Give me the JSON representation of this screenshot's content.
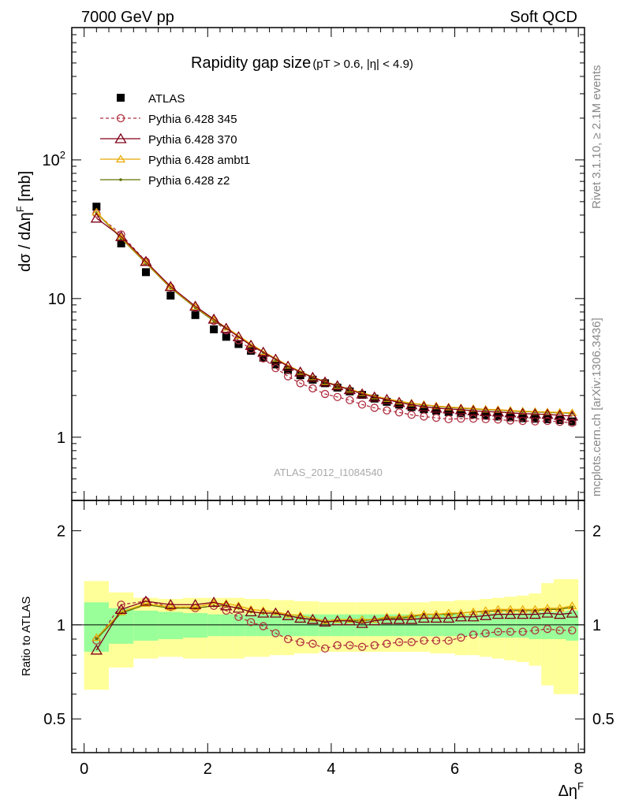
{
  "header": {
    "left": "7000 GeV pp",
    "right": "Soft QCD"
  },
  "side": {
    "rivet": "Rivet 3.1.10, ≥ 2.1M events",
    "mcplots": "mcplots.cern.ch [arXiv:1306.3436]"
  },
  "title": {
    "main": "Rapidity gap size",
    "sub": "(pT > 0.6, |η| < 4.9)"
  },
  "analysis_id": "ATLAS_2012_I1084540",
  "colors": {
    "atlas": "#000000",
    "p345": "#b03040",
    "p370": "#800018",
    "ambt1": "#e8a800",
    "z2": "#607000",
    "band_inner": "#99ff99",
    "band_outer": "#ffff99"
  },
  "chart_data": [
    {
      "type": "scatter",
      "title": "Rapidity gap size",
      "subtitle": "(pT > 0.6, |η| < 4.9)",
      "ylabel": "dσ / dΔηF [mb]",
      "ylabel_parts": {
        "main": "dσ / dΔη",
        "sup": "F",
        "unit": " [mb]"
      },
      "yscale": "log",
      "ylim": [
        0.35,
        900
      ],
      "xlim": [
        -0.2,
        8.1
      ],
      "y_ticks": [
        {
          "value": 1,
          "label": "1"
        },
        {
          "value": 10,
          "label": "10"
        },
        {
          "value": 100,
          "label": "10",
          "sup": "2"
        }
      ],
      "legend_position": "top-left",
      "x": [
        0.2,
        0.6,
        1.0,
        1.4,
        1.8,
        2.1,
        2.3,
        2.5,
        2.7,
        2.9,
        3.1,
        3.3,
        3.5,
        3.7,
        3.9,
        4.1,
        4.3,
        4.5,
        4.7,
        4.9,
        5.1,
        5.3,
        5.5,
        5.7,
        5.9,
        6.1,
        6.3,
        6.5,
        6.7,
        6.9,
        7.1,
        7.3,
        7.5,
        7.7,
        7.9
      ],
      "series": [
        {
          "name": "ATLAS",
          "marker": "square",
          "values": [
            46,
            25,
            15.5,
            10.5,
            7.6,
            6.0,
            5.3,
            4.7,
            4.2,
            3.75,
            3.35,
            3.05,
            2.8,
            2.6,
            2.45,
            2.28,
            2.14,
            2.02,
            1.9,
            1.8,
            1.72,
            1.65,
            1.59,
            1.55,
            1.52,
            1.49,
            1.46,
            1.43,
            1.41,
            1.39,
            1.37,
            1.36,
            1.35,
            1.33,
            1.3
          ]
        },
        {
          "name": "Pythia 6.428 345",
          "marker": "open-circle",
          "dashed": true,
          "values": [
            41,
            29,
            18.5,
            12.0,
            8.6,
            6.9,
            5.9,
            5.0,
            4.3,
            3.7,
            3.15,
            2.75,
            2.45,
            2.25,
            2.05,
            1.95,
            1.85,
            1.72,
            1.63,
            1.56,
            1.51,
            1.45,
            1.41,
            1.38,
            1.35,
            1.36,
            1.36,
            1.35,
            1.34,
            1.32,
            1.31,
            1.3,
            1.31,
            1.29,
            1.27
          ]
        },
        {
          "name": "Pythia 6.428 370",
          "marker": "open-triangle",
          "values": [
            38,
            28,
            18.5,
            12.2,
            8.8,
            7.1,
            6.1,
            5.3,
            4.6,
            4.1,
            3.65,
            3.25,
            2.95,
            2.7,
            2.5,
            2.35,
            2.2,
            2.05,
            1.95,
            1.87,
            1.78,
            1.71,
            1.66,
            1.62,
            1.6,
            1.58,
            1.55,
            1.53,
            1.52,
            1.5,
            1.48,
            1.47,
            1.46,
            1.44,
            1.42
          ]
        },
        {
          "name": "Pythia 6.428 ambt1",
          "marker": "open-triangle-small",
          "values": [
            42,
            27.5,
            18.2,
            12.0,
            8.7,
            7.0,
            6.2,
            5.4,
            4.7,
            4.15,
            3.7,
            3.3,
            2.98,
            2.72,
            2.52,
            2.36,
            2.22,
            2.09,
            1.98,
            1.9,
            1.82,
            1.76,
            1.72,
            1.68,
            1.65,
            1.63,
            1.61,
            1.59,
            1.58,
            1.56,
            1.54,
            1.53,
            1.52,
            1.51,
            1.5
          ]
        },
        {
          "name": "Pythia 6.428 z2",
          "marker": "dot",
          "values": [
            41.5,
            27.2,
            18.0,
            11.9,
            8.6,
            6.9,
            6.1,
            5.3,
            4.6,
            4.1,
            3.65,
            3.25,
            2.95,
            2.7,
            2.5,
            2.34,
            2.2,
            2.08,
            1.97,
            1.89,
            1.81,
            1.75,
            1.71,
            1.67,
            1.64,
            1.62,
            1.6,
            1.58,
            1.57,
            1.55,
            1.53,
            1.52,
            1.51,
            1.5,
            1.49
          ]
        }
      ]
    },
    {
      "type": "scatter",
      "ylabel": "Ratio to ATLAS",
      "xlabel": "ΔηF",
      "xlabel_parts": {
        "main": "Δη",
        "sup": "F"
      },
      "yscale": "log",
      "ylim": [
        0.39,
        2.5
      ],
      "xlim": [
        -0.2,
        8.1
      ],
      "x_ticks": [
        {
          "value": 0,
          "label": "0"
        },
        {
          "value": 2,
          "label": "2"
        },
        {
          "value": 4,
          "label": "4"
        },
        {
          "value": 6,
          "label": "6"
        },
        {
          "value": 8,
          "label": "8"
        }
      ],
      "y_ticks": [
        {
          "value": 0.5,
          "label": "0.5"
        },
        {
          "value": 1,
          "label": "1"
        },
        {
          "value": 2,
          "label": "2"
        }
      ],
      "x": [
        0.2,
        0.6,
        1.0,
        1.4,
        1.8,
        2.1,
        2.3,
        2.5,
        2.7,
        2.9,
        3.1,
        3.3,
        3.5,
        3.7,
        3.9,
        4.1,
        4.3,
        4.5,
        4.7,
        4.9,
        5.1,
        5.3,
        5.5,
        5.7,
        5.9,
        6.1,
        6.3,
        6.5,
        6.7,
        6.9,
        7.1,
        7.3,
        7.5,
        7.7,
        7.9
      ],
      "bins": [
        [
          0.0,
          0.4
        ],
        [
          0.4,
          0.8
        ],
        [
          0.8,
          1.2
        ],
        [
          1.2,
          1.6
        ],
        [
          1.6,
          2.0
        ],
        [
          2.0,
          2.2
        ],
        [
          2.2,
          2.4
        ],
        [
          2.4,
          2.6
        ],
        [
          2.6,
          2.8
        ],
        [
          2.8,
          3.0
        ],
        [
          3.0,
          3.2
        ],
        [
          3.2,
          3.4
        ],
        [
          3.4,
          3.6
        ],
        [
          3.6,
          3.8
        ],
        [
          3.8,
          4.0
        ],
        [
          4.0,
          4.2
        ],
        [
          4.2,
          4.4
        ],
        [
          4.4,
          4.6
        ],
        [
          4.6,
          4.8
        ],
        [
          4.8,
          5.0
        ],
        [
          5.0,
          5.2
        ],
        [
          5.2,
          5.4
        ],
        [
          5.4,
          5.6
        ],
        [
          5.6,
          5.8
        ],
        [
          5.8,
          6.0
        ],
        [
          6.0,
          6.2
        ],
        [
          6.2,
          6.4
        ],
        [
          6.4,
          6.6
        ],
        [
          6.6,
          6.8
        ],
        [
          6.8,
          7.0
        ],
        [
          7.0,
          7.2
        ],
        [
          7.2,
          7.4
        ],
        [
          7.4,
          7.6
        ],
        [
          7.6,
          7.8
        ],
        [
          7.8,
          8.0
        ]
      ],
      "band_inner": [
        0.18,
        0.13,
        0.11,
        0.1,
        0.09,
        0.08,
        0.08,
        0.08,
        0.08,
        0.08,
        0.08,
        0.08,
        0.08,
        0.08,
        0.08,
        0.08,
        0.08,
        0.08,
        0.08,
        0.08,
        0.08,
        0.08,
        0.08,
        0.08,
        0.08,
        0.08,
        0.08,
        0.09,
        0.09,
        0.09,
        0.09,
        0.1,
        0.1,
        0.1,
        0.11
      ],
      "band_outer": [
        0.38,
        0.27,
        0.22,
        0.21,
        0.22,
        0.22,
        0.22,
        0.22,
        0.21,
        0.21,
        0.2,
        0.2,
        0.19,
        0.19,
        0.18,
        0.18,
        0.18,
        0.18,
        0.18,
        0.18,
        0.18,
        0.18,
        0.18,
        0.19,
        0.19,
        0.2,
        0.2,
        0.21,
        0.22,
        0.23,
        0.24,
        0.26,
        0.36,
        0.4,
        0.4
      ],
      "series": [
        {
          "name": "Pythia 6.428 345",
          "values": [
            0.89,
            1.16,
            1.19,
            1.14,
            1.13,
            1.15,
            1.11,
            1.06,
            1.02,
            0.99,
            0.94,
            0.9,
            0.88,
            0.87,
            0.84,
            0.86,
            0.86,
            0.85,
            0.86,
            0.87,
            0.88,
            0.88,
            0.89,
            0.89,
            0.89,
            0.91,
            0.93,
            0.94,
            0.95,
            0.95,
            0.95,
            0.96,
            0.97,
            0.96,
            0.96
          ]
        },
        {
          "name": "Pythia 6.428 370",
          "values": [
            0.83,
            1.12,
            1.19,
            1.16,
            1.16,
            1.18,
            1.15,
            1.13,
            1.1,
            1.09,
            1.09,
            1.07,
            1.05,
            1.04,
            1.02,
            1.03,
            1.03,
            1.01,
            1.03,
            1.04,
            1.04,
            1.04,
            1.05,
            1.05,
            1.05,
            1.06,
            1.06,
            1.07,
            1.08,
            1.08,
            1.08,
            1.08,
            1.09,
            1.08,
            1.09
          ]
        },
        {
          "name": "Pythia 6.428 ambt1",
          "values": [
            0.91,
            1.1,
            1.17,
            1.14,
            1.14,
            1.17,
            1.17,
            1.15,
            1.12,
            1.11,
            1.1,
            1.08,
            1.07,
            1.05,
            1.03,
            1.04,
            1.04,
            1.04,
            1.04,
            1.06,
            1.06,
            1.07,
            1.08,
            1.08,
            1.09,
            1.09,
            1.1,
            1.11,
            1.12,
            1.12,
            1.12,
            1.12,
            1.13,
            1.13,
            1.15
          ]
        },
        {
          "name": "Pythia 6.428 z2",
          "values": [
            0.9,
            1.09,
            1.16,
            1.13,
            1.13,
            1.15,
            1.15,
            1.13,
            1.1,
            1.09,
            1.09,
            1.07,
            1.05,
            1.04,
            1.02,
            1.03,
            1.03,
            1.03,
            1.04,
            1.05,
            1.05,
            1.06,
            1.08,
            1.08,
            1.08,
            1.09,
            1.1,
            1.1,
            1.11,
            1.11,
            1.11,
            1.11,
            1.12,
            1.12,
            1.14
          ]
        }
      ]
    }
  ]
}
